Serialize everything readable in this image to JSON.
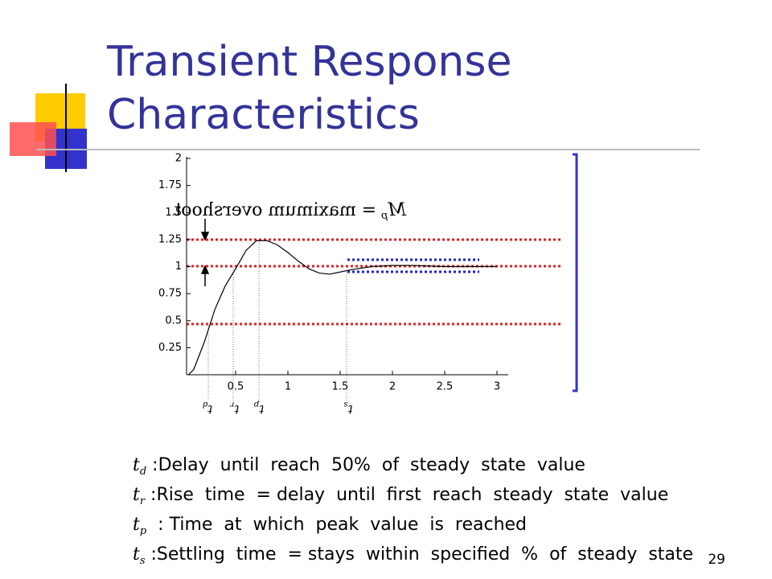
{
  "title_lines": [
    "Transient Response",
    "Characteristics"
  ],
  "chart_data": {
    "type": "line",
    "x": [
      0,
      0.05,
      0.1,
      0.2,
      0.3,
      0.4,
      0.5,
      0.6,
      0.7,
      0.8,
      0.9,
      1.0,
      1.1,
      1.2,
      1.3,
      1.4,
      1.5,
      1.6,
      1.8,
      2.0,
      2.2,
      2.5,
      3.0
    ],
    "series": [
      {
        "color": "#000000",
        "values": [
          null,
          0,
          0.05,
          0.3,
          0.6,
          0.82,
          0.98,
          1.15,
          1.24,
          1.24,
          1.2,
          1.13,
          1.05,
          0.98,
          0.94,
          0.93,
          0.95,
          0.97,
          1.0,
          1.01,
          1.01,
          1.0,
          1.0
        ]
      }
    ],
    "xlim": [
      0,
      3
    ],
    "ylim": [
      0,
      2
    ],
    "xticks": [
      0.5,
      1,
      1.5,
      2,
      2.5,
      3
    ],
    "yticks": [
      0.25,
      0.5,
      0.75,
      1,
      1.25,
      1.5,
      1.75,
      2
    ],
    "annotation": {
      "symbol": "M",
      "subscript": "p",
      "text": "= maximum overshoot"
    },
    "time_labels": [
      {
        "symbol": "t",
        "subscript": "d"
      },
      {
        "symbol": "t",
        "subscript": "r"
      },
      {
        "symbol": "t",
        "subscript": "p"
      },
      {
        "symbol": "t",
        "subscript": "s"
      }
    ]
  },
  "definitions": [
    {
      "symbol": "t",
      "subscript": "d",
      "text": " :Delay  until  reach  50%  of  steady  state  value"
    },
    {
      "symbol": "t",
      "subscript": "r",
      "text": " :Rise  time  = delay  until  first  reach  steady  state  value"
    },
    {
      "symbol": "t",
      "subscript": "p",
      "text": "  : Time  at  which  peak  value  is  reached"
    },
    {
      "symbol": "t",
      "subscript": "s",
      "text": " :Settling  time  = stays  within  specified  %  of  steady  state"
    }
  ],
  "page_number": "29"
}
